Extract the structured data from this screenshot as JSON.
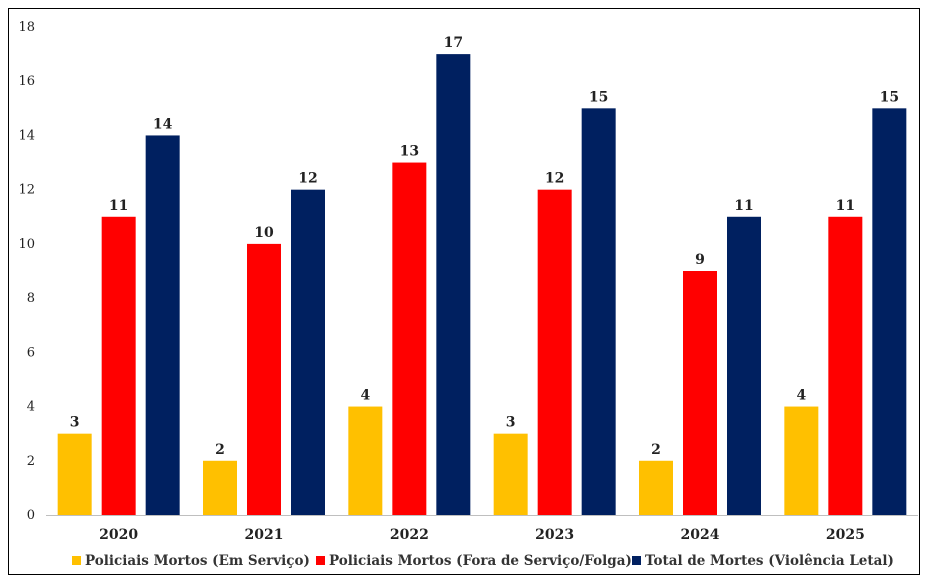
{
  "chart_data": {
    "type": "bar",
    "categories": [
      "2020",
      "2021",
      "2022",
      "2023",
      "2024",
      "2025"
    ],
    "series": [
      {
        "name": "Policiais Mortos (Em Serviço)",
        "color": "#FFC000",
        "values": [
          3,
          2,
          4,
          3,
          2,
          4
        ]
      },
      {
        "name": "Policiais Mortos (Fora de Serviço/Folga)",
        "color": "#FF0000",
        "values": [
          11,
          10,
          13,
          12,
          9,
          11
        ]
      },
      {
        "name": "Total de Mortes (Violência Letal)",
        "color": "#002060",
        "values": [
          14,
          12,
          17,
          15,
          11,
          15
        ]
      }
    ],
    "title": "",
    "xlabel": "",
    "ylabel": "",
    "ylim": [
      0,
      18
    ],
    "yticks": [
      0,
      2,
      4,
      6,
      8,
      10,
      12,
      14,
      16,
      18
    ],
    "grid": false,
    "legend": "bottom"
  }
}
